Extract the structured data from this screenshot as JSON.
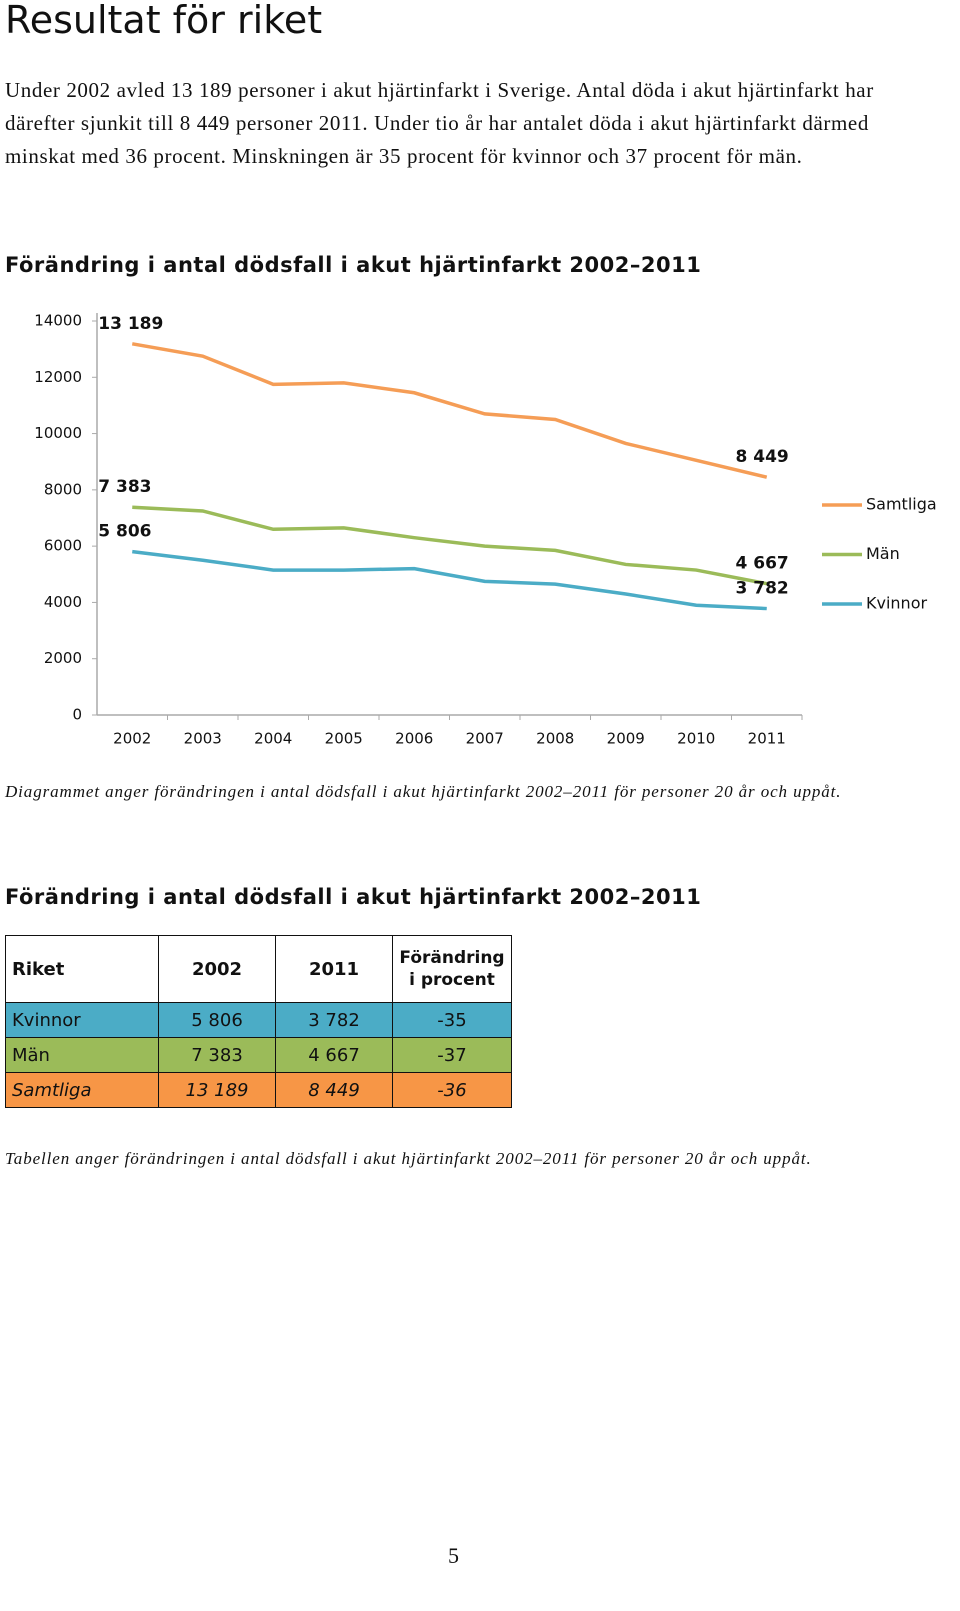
{
  "header": {
    "title": "Resultat för riket"
  },
  "intro": "Under 2002 avled 13 189 personer i akut hjärtinfarkt i Sverige. Antal döda i akut hjärtinfarkt har därefter sjunkit till 8 449 personer 2011. Under tio år har antalet döda i akut hjärtinfarkt därmed minskat med 36 procent. Minskningen är 35 procent för kvinnor och 37 procent för män.",
  "chart_data": {
    "type": "line",
    "title": "Förändring i antal dödsfall i akut hjärtinfarkt 2002–2011",
    "categories": [
      "2002",
      "2003",
      "2004",
      "2005",
      "2006",
      "2007",
      "2008",
      "2009",
      "2010",
      "2011"
    ],
    "series": [
      {
        "name": "Samtliga",
        "color": "#f59d56",
        "values": [
          13189,
          12750,
          11750,
          11800,
          11450,
          10700,
          10500,
          9650,
          9050,
          8449
        ],
        "value_labels": [
          "13 189",
          null,
          null,
          null,
          null,
          null,
          null,
          null,
          null,
          "8 449"
        ]
      },
      {
        "name": "Män",
        "color": "#9bbb59",
        "values": [
          7383,
          7250,
          6600,
          6650,
          6300,
          6000,
          5850,
          5350,
          5150,
          4667
        ],
        "value_labels": [
          "7 383",
          null,
          null,
          null,
          null,
          null,
          null,
          null,
          null,
          "4 667"
        ]
      },
      {
        "name": "Kvinnor",
        "color": "#4bacc6",
        "values": [
          5806,
          5500,
          5150,
          5150,
          5200,
          4750,
          4650,
          4300,
          3900,
          3782
        ],
        "value_labels": [
          "5 806",
          null,
          null,
          null,
          null,
          null,
          null,
          null,
          null,
          "3 782"
        ]
      }
    ],
    "ylim": [
      0,
      14000
    ],
    "yticks": [
      0,
      2000,
      4000,
      6000,
      8000,
      10000,
      12000,
      14000
    ],
    "grid": false,
    "legend": "right"
  },
  "chart_caption": "Diagrammet anger förändringen i antal dödsfall i akut hjärtinfarkt 2002–2011 för personer 20 år och uppåt.",
  "table": {
    "title": "Förändring i antal dödsfall i akut hjärtinfarkt 2002–2011",
    "header": [
      "Riket",
      "2002",
      "2011",
      "Förändring i procent"
    ],
    "rows": [
      [
        "Kvinnor",
        "5 806",
        "3 782",
        "-35"
      ],
      [
        "Män",
        "7 383",
        "4 667",
        "-37"
      ],
      [
        "Samtliga",
        "13 189",
        "8 449",
        "-36"
      ]
    ]
  },
  "table_caption": "Tabellen anger förändringen i antal dödsfall i akut hjärtinfarkt 2002–2011 för personer 20 år och uppåt.",
  "page_number": "5"
}
